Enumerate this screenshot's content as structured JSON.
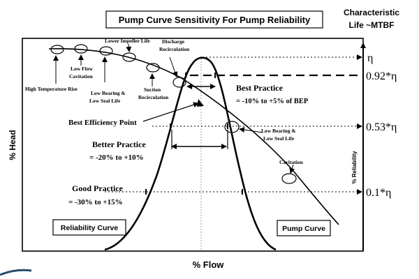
{
  "title": "Pump Curve Sensitivity For Pump Reliability",
  "right_header": {
    "line1": "Characteristic",
    "line2": "Life ~MTBF"
  },
  "axes": {
    "x_label": "% Flow",
    "y_label": "% Head",
    "right_label": "% Reliability"
  },
  "eta_levels": [
    {
      "label": "η"
    },
    {
      "label": "0.92*η"
    },
    {
      "label": "0.53*η"
    },
    {
      "label": "0.1*η"
    }
  ],
  "callouts": {
    "high_temp": "High Temperature Rise",
    "low_flow_1": "Low Flow",
    "low_flow_2": "Cavitation",
    "low_bearing_left_1": "Low Bearing &",
    "low_bearing_left_2": "Low Seal Life",
    "lower_impeller": "Lower Impeller Life",
    "discharge_1": "Discharge",
    "discharge_2": "Recirculation",
    "suction_1": "Suction",
    "suction_2": "Recirculation",
    "low_bearing_right_1": "Low Bearing &",
    "low_bearing_right_2": "Low Seal Life",
    "cavitation": "Cavitation"
  },
  "practices": {
    "best_title": "Best Practice",
    "best_range": "= -10% to +5% of BEP",
    "bep": "Best Efficiency Point",
    "better_title": "Better Practice",
    "better_range": "= -20% to +10%",
    "good_title": "Good Practice",
    "good_range": "= -30% to +15%"
  },
  "boxes": {
    "reliability": "Reliability Curve",
    "pump": "Pump Curve"
  }
}
